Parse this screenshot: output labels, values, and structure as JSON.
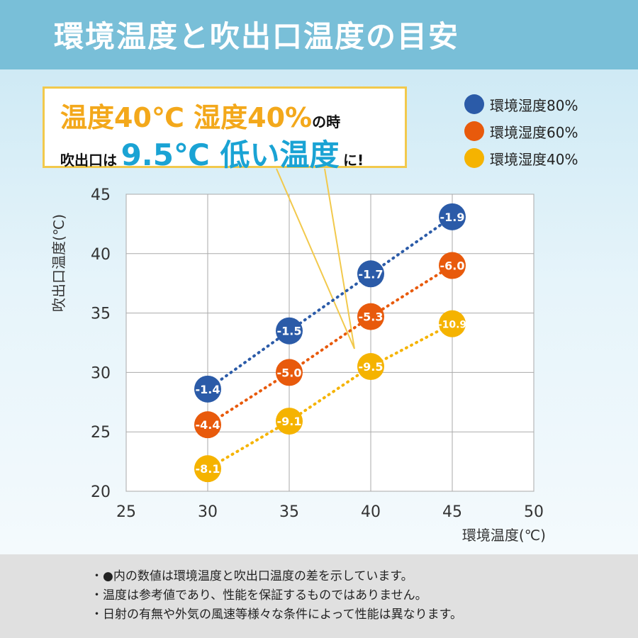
{
  "title": "環境温度と吹出口温度の目安",
  "callout": {
    "l1a": "温度40℃ 湿度40%",
    "l1b": "の時",
    "l2a": "吹出口は",
    "l2b": "9.5℃ 低い温度",
    "l2c": "に!"
  },
  "notes": [
    "●内の数値は環境温度と吹出口温度の差を示しています。",
    "温度は参考値であり、性能を保証するものではありません。",
    "日射の有無や外気の風速等様々な条件によって性能は異なります。"
  ],
  "chart_data": {
    "type": "scatter",
    "xlabel": "環境温度(℃)",
    "ylabel": "吹出口温度(℃)",
    "xlim": [
      25,
      50
    ],
    "ylim": [
      20,
      45
    ],
    "xticks": [
      25,
      30,
      35,
      40,
      45,
      50
    ],
    "yticks": [
      20,
      25,
      30,
      35,
      40,
      45
    ],
    "grid": true,
    "legend_position": "top-right",
    "series": [
      {
        "name": "環境湿度80%",
        "color": "#2b5ba8",
        "x": [
          30,
          35,
          40,
          45
        ],
        "y": [
          28.6,
          33.5,
          38.3,
          43.1
        ],
        "labels": [
          "-1.4",
          "-1.5",
          "-1.7",
          "-1.9"
        ]
      },
      {
        "name": "環境湿度60%",
        "color": "#e85a0c",
        "x": [
          30,
          35,
          40,
          45
        ],
        "y": [
          25.6,
          30.0,
          34.7,
          39.0
        ],
        "labels": [
          "-4.4",
          "-5.0",
          "-5.3",
          "-6.0"
        ]
      },
      {
        "name": "環境湿度40%",
        "color": "#f5b300",
        "x": [
          30,
          35,
          40,
          45
        ],
        "y": [
          21.9,
          25.9,
          30.5,
          34.1
        ],
        "labels": [
          "-8.1",
          "-9.1",
          "-9.5",
          "-10.9"
        ]
      }
    ]
  }
}
